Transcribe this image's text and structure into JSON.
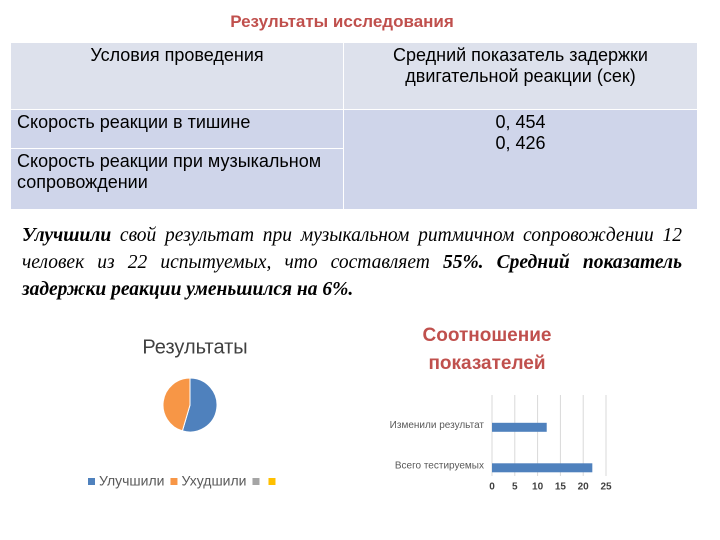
{
  "title": "Результаты исследования",
  "table": {
    "header": [
      "Условия проведения",
      "Средний показатель задержки двигательной реакции (сек)"
    ],
    "rows": [
      [
        "Скорость реакции в тишине",
        "0, 454"
      ],
      [
        "Скорость реакции при музыкальном сопровождении",
        "0, 426"
      ]
    ]
  },
  "paragraph": [
    "Улучшили",
    " свой результат  при музыкальном ритмичном сопровождении 12 человек из 22 испытуемых, что составляет ",
    "55%. Средний показатель задержки реакции уменьшился на 6%."
  ],
  "chart_data": [
    {
      "type": "pie",
      "title": "Результаты",
      "categories": [
        "Улучшили",
        "Ухудшили",
        null,
        null
      ],
      "values": [
        12,
        10,
        0,
        0
      ],
      "colors": [
        "#4f81bd",
        "#f79646",
        "#a5a5a5",
        "#ffc000"
      ],
      "legend": "bottom"
    },
    {
      "type": "hbar",
      "title": "Соотношение показателей",
      "categories": [
        "Изменили результат",
        "Всего тестируемых"
      ],
      "values": [
        12,
        22
      ],
      "color": "#4f81bd",
      "xlim": [
        0,
        25
      ],
      "xticks": [
        0,
        5,
        10,
        15,
        20,
        25
      ],
      "grid": true
    }
  ]
}
